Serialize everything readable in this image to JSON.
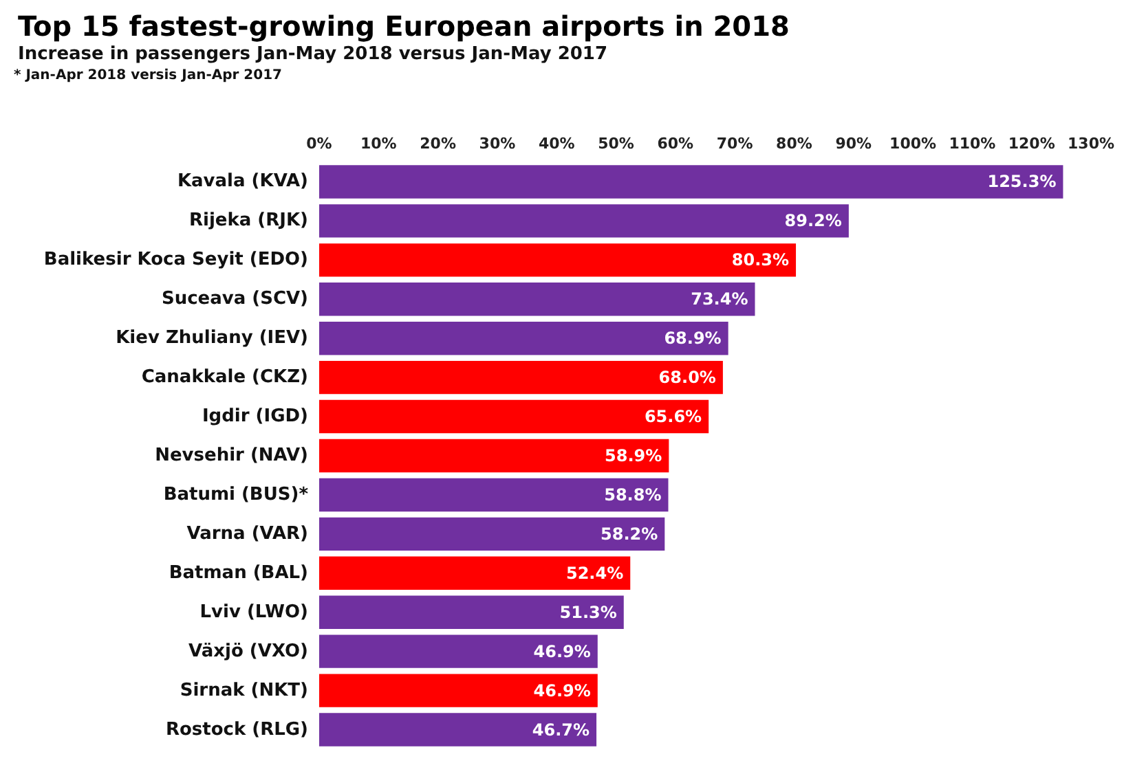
{
  "chart_data": {
    "type": "bar",
    "orientation": "horizontal",
    "title": "Top 15 fastest-growing European airports in 2018",
    "subtitle": "Increase in passengers Jan-May 2018 versus Jan-May 2017",
    "annotations": [
      "* Jan-Apr 2018 versis Jan-Apr 2017"
    ],
    "categories": [
      "Kavala (KVA)",
      "Rijeka (RJK)",
      "Balikesir Koca Seyit (EDO)",
      "Suceava (SCV)",
      "Kiev Zhuliany (IEV)",
      "Canakkale (CKZ)",
      "Igdir (IGD)",
      "Nevsehir (NAV)",
      "Batumi (BUS)*",
      "Varna (VAR)",
      "Batman (BAL)",
      "Lviv (LWO)",
      "Växjö (VXO)",
      "Sirnak (NKT)",
      "Rostock (RLG)"
    ],
    "values": [
      125.3,
      89.2,
      80.3,
      73.4,
      68.9,
      68.0,
      65.6,
      58.9,
      58.8,
      58.2,
      52.4,
      51.3,
      46.9,
      46.9,
      46.7
    ],
    "value_labels": [
      "125.3%",
      "89.2%",
      "80.3%",
      "73.4%",
      "68.9%",
      "68.0%",
      "65.6%",
      "58.9%",
      "58.8%",
      "58.2%",
      "52.4%",
      "51.3%",
      "46.9%",
      "46.9%",
      "46.7%"
    ],
    "colors": [
      "#7030a0",
      "#7030a0",
      "#ff0000",
      "#7030a0",
      "#7030a0",
      "#ff0000",
      "#ff0000",
      "#ff0000",
      "#7030a0",
      "#7030a0",
      "#ff0000",
      "#7030a0",
      "#7030a0",
      "#ff0000",
      "#7030a0"
    ],
    "xlim": [
      0,
      130
    ],
    "xticks": [
      {
        "value": 0,
        "label": "0%"
      },
      {
        "value": 10,
        "label": "10%"
      },
      {
        "value": 20,
        "label": "20%"
      },
      {
        "value": 30,
        "label": "30%"
      },
      {
        "value": 40,
        "label": "40%"
      },
      {
        "value": 50,
        "label": "50%"
      },
      {
        "value": 60,
        "label": "60%"
      },
      {
        "value": 70,
        "label": "70%"
      },
      {
        "value": 80,
        "label": "80%"
      },
      {
        "value": 90,
        "label": "90%"
      },
      {
        "value": 100,
        "label": "100%"
      },
      {
        "value": 110,
        "label": "110%"
      },
      {
        "value": 120,
        "label": "120%"
      },
      {
        "value": 130,
        "label": "130%"
      }
    ],
    "grid": false
  }
}
